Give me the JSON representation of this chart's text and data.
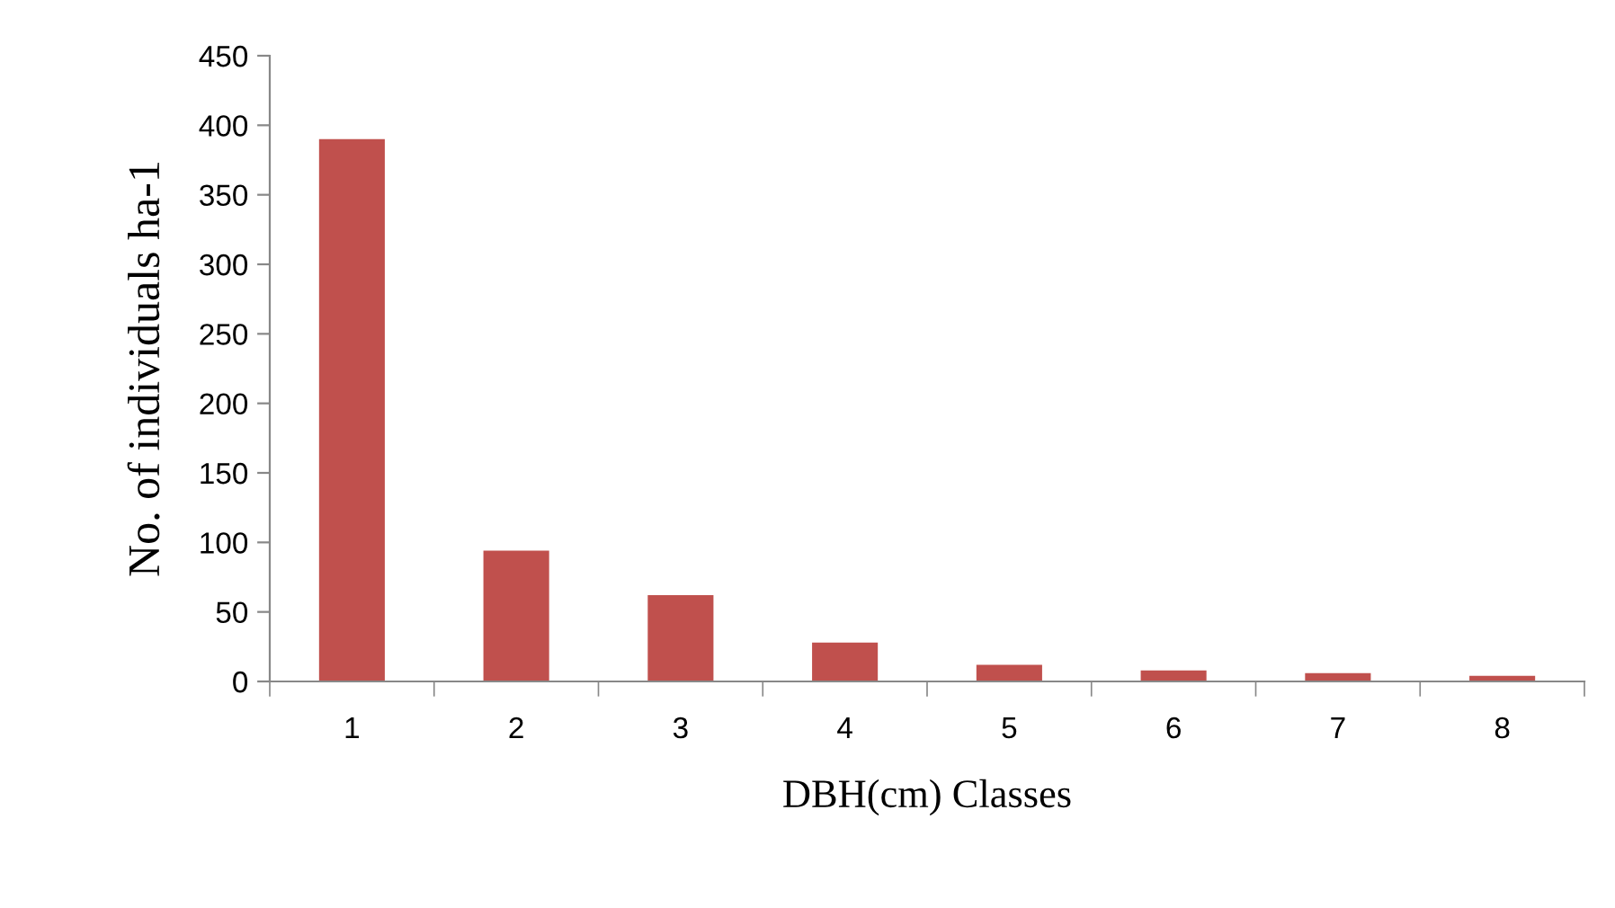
{
  "chart_data": {
    "type": "bar",
    "xlabel": "DBH(cm) Classes",
    "ylabel": "No. of individuals ha-1",
    "categories": [
      "1",
      "2",
      "3",
      "4",
      "5",
      "6",
      "7",
      "8"
    ],
    "values": [
      390,
      94,
      62,
      28,
      12,
      8,
      6,
      4
    ],
    "color": "#c0504d",
    "ylim": [
      0,
      450
    ],
    "yticks": [
      0,
      50,
      100,
      150,
      200,
      250,
      300,
      350,
      400,
      450
    ],
    "grid": false,
    "legend": false
  }
}
